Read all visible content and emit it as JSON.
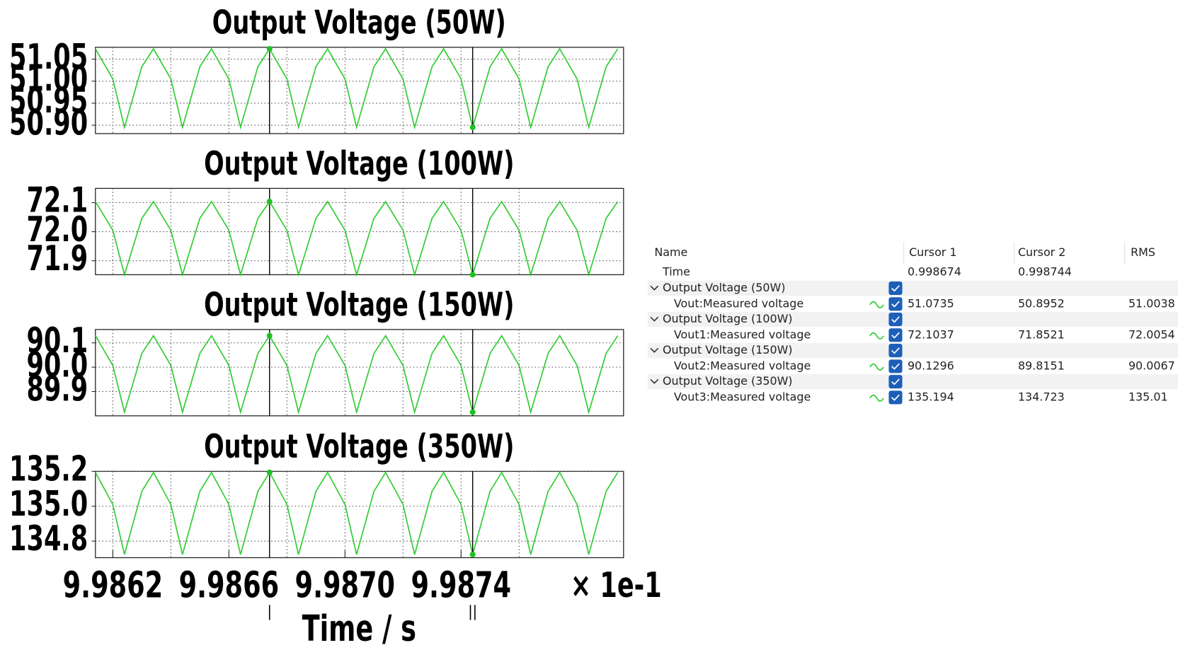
{
  "chart_data": [
    {
      "type": "line",
      "title": "Output Voltage (50W)",
      "color": "#33cc33",
      "x": [
        9.98614,
        9.9862,
        9.98624,
        9.9863,
        9.98634,
        9.9864,
        9.98644,
        9.9865,
        9.98654,
        9.9866,
        9.98664,
        9.9867,
        9.98674,
        9.9868,
        9.98684,
        9.9869,
        9.98694,
        9.987,
        9.98704,
        9.9871,
        9.98714,
        9.9872,
        9.98724,
        9.9873,
        9.98734,
        9.9874,
        9.98744,
        9.9875,
        9.98754,
        9.9876,
        9.98764,
        9.9877,
        9.98774,
        9.9878,
        9.98784,
        9.9879,
        9.98794
      ],
      "values": [
        51.0735,
        51.005,
        50.8952,
        51.033,
        51.0735,
        51.005,
        50.8952,
        51.033,
        51.0735,
        51.005,
        50.8952,
        51.033,
        51.0735,
        51.005,
        50.8952,
        51.033,
        51.0735,
        51.005,
        50.8952,
        51.033,
        51.0735,
        51.005,
        50.8952,
        51.033,
        51.0735,
        51.005,
        50.8952,
        51.033,
        51.0735,
        51.005,
        50.8952,
        51.033,
        51.0735,
        51.005,
        50.8952,
        51.033,
        51.0735
      ],
      "xlim": [
        9.98614,
        9.98796
      ],
      "xticks": [
        9.9862,
        9.9866,
        {
          "value": 9.987,
          "label": "9.9870"
        },
        9.9874
      ],
      "xminor": [
        9.9864,
        9.9868,
        9.9872,
        9.9876
      ],
      "ylim": [
        50.881,
        51.077
      ],
      "yticks": [
        {
          "value": 50.9,
          "label": "50.90"
        },
        50.95,
        {
          "value": 51,
          "label": "51.00"
        },
        51.05
      ],
      "grid": true,
      "cursors": [
        9.98674,
        9.98744
      ]
    },
    {
      "type": "line",
      "title": "Output Voltage (100W)",
      "color": "#33cc33",
      "x": [
        9.98614,
        9.9862,
        9.98624,
        9.9863,
        9.98634,
        9.9864,
        9.98644,
        9.9865,
        9.98654,
        9.9866,
        9.98664,
        9.9867,
        9.98674,
        9.9868,
        9.98684,
        9.9869,
        9.98694,
        9.987,
        9.98704,
        9.9871,
        9.98714,
        9.9872,
        9.98724,
        9.9873,
        9.98734,
        9.9874,
        9.98744,
        9.9875,
        9.98754,
        9.9876,
        9.98764,
        9.9877,
        9.98774,
        9.9878,
        9.98784,
        9.9879,
        9.98794
      ],
      "values": [
        72.1037,
        72.005,
        71.8521,
        72.046,
        72.1037,
        72.005,
        71.8521,
        72.046,
        72.1037,
        72.005,
        71.8521,
        72.046,
        72.1037,
        72.005,
        71.8521,
        72.046,
        72.1037,
        72.005,
        71.8521,
        72.046,
        72.1037,
        72.005,
        71.8521,
        72.046,
        72.1037,
        72.005,
        71.8521,
        72.046,
        72.1037,
        72.005,
        71.8521,
        72.046,
        72.1037,
        72.005,
        71.8521,
        72.046,
        72.1037
      ],
      "xlim": [
        9.98614,
        9.98796
      ],
      "xticks": [
        9.9862,
        9.9866,
        {
          "value": 9.987,
          "label": "9.9870"
        },
        9.9874
      ],
      "xminor": [
        9.9864,
        9.9868,
        9.9872,
        9.9876
      ],
      "ylim": [
        71.852,
        72.149
      ],
      "yticks": [
        71.9,
        {
          "value": 72,
          "label": "72.0"
        },
        72.1
      ],
      "grid": true,
      "cursors": [
        9.98674,
        9.98744
      ]
    },
    {
      "type": "line",
      "title": "Output Voltage (150W)",
      "color": "#33cc33",
      "x": [
        9.98614,
        9.9862,
        9.98624,
        9.9863,
        9.98634,
        9.9864,
        9.98644,
        9.9865,
        9.98654,
        9.9866,
        9.98664,
        9.9867,
        9.98674,
        9.9868,
        9.98684,
        9.9869,
        9.98694,
        9.987,
        9.98704,
        9.9871,
        9.98714,
        9.9872,
        9.98724,
        9.9873,
        9.98734,
        9.9874,
        9.98744,
        9.9875,
        9.98754,
        9.9876,
        9.98764,
        9.9877,
        9.98774,
        9.9878,
        9.98784,
        9.9879,
        9.98794
      ],
      "values": [
        90.1296,
        90.007,
        89.8151,
        90.057,
        90.1296,
        90.007,
        89.8151,
        90.057,
        90.1296,
        90.007,
        89.8151,
        90.057,
        90.1296,
        90.007,
        89.8151,
        90.057,
        90.1296,
        90.007,
        89.8151,
        90.057,
        90.1296,
        90.007,
        89.8151,
        90.057,
        90.1296,
        90.007,
        89.8151,
        90.057,
        90.1296,
        90.007,
        89.8151,
        90.057,
        90.1296,
        90.007,
        89.8151,
        90.057,
        90.1296
      ],
      "xlim": [
        9.98614,
        9.98796
      ],
      "xticks": [
        9.9862,
        9.9866,
        {
          "value": 9.987,
          "label": "9.9870"
        },
        9.9874
      ],
      "xminor": [
        9.9864,
        9.9868,
        9.9872,
        9.9876
      ],
      "ylim": [
        89.8,
        90.155
      ],
      "yticks": [
        89.9,
        {
          "value": 90,
          "label": "90.0"
        },
        90.1
      ],
      "grid": true,
      "cursors": [
        9.98674,
        9.98744
      ]
    },
    {
      "type": "line",
      "title": "Output Voltage (350W)",
      "color": "#33cc33",
      "x": [
        9.98614,
        9.9862,
        9.98624,
        9.9863,
        9.98634,
        9.9864,
        9.98644,
        9.9865,
        9.98654,
        9.9866,
        9.98664,
        9.9867,
        9.98674,
        9.9868,
        9.98684,
        9.9869,
        9.98694,
        9.987,
        9.98704,
        9.9871,
        9.98714,
        9.9872,
        9.98724,
        9.9873,
        9.98734,
        9.9874,
        9.98744,
        9.9875,
        9.98754,
        9.9876,
        9.98764,
        9.9877,
        9.98774,
        9.9878,
        9.98784,
        9.9879,
        9.98794
      ],
      "values": [
        135.194,
        135.01,
        134.723,
        135.086,
        135.194,
        135.01,
        134.723,
        135.086,
        135.194,
        135.01,
        134.723,
        135.086,
        135.194,
        135.01,
        134.723,
        135.086,
        135.194,
        135.01,
        134.723,
        135.086,
        135.194,
        135.01,
        134.723,
        135.086,
        135.194,
        135.01,
        134.723,
        135.086,
        135.194,
        135.01,
        134.723,
        135.086,
        135.194,
        135.01,
        134.723,
        135.086,
        135.194
      ],
      "xlim": [
        9.98614,
        9.98796
      ],
      "xticks": [
        9.9862,
        9.9866,
        {
          "value": 9.987,
          "label": "9.9870"
        },
        9.9874
      ],
      "xminor": [
        9.9864,
        9.9868,
        9.9872,
        9.9876
      ],
      "ylim": [
        134.705,
        135.2
      ],
      "yticks": [
        134.8,
        {
          "value": 135,
          "label": "135.0"
        },
        135.2
      ],
      "grid": true,
      "cursors": [
        9.98674,
        9.98744
      ],
      "xlabel": "Time / s",
      "xscale_label": "× 1e-1"
    }
  ],
  "cursor_table": {
    "columns": [
      "Name",
      "Cursor 1",
      "Cursor 2",
      "RMS"
    ],
    "time": {
      "name": "Time",
      "cursor1": "0.998674",
      "cursor2": "0.998744"
    },
    "groups": [
      {
        "name": "Output Voltage (50W)",
        "signal": {
          "name": "Vout:Measured voltage",
          "cursor1": "51.0735",
          "cursor2": "50.8952",
          "rms": "51.0038"
        }
      },
      {
        "name": "Output Voltage (100W)",
        "signal": {
          "name": "Vout1:Measured voltage",
          "cursor1": "72.1037",
          "cursor2": "71.8521",
          "rms": "72.0054"
        }
      },
      {
        "name": "Output Voltage (150W)",
        "signal": {
          "name": "Vout2:Measured voltage",
          "cursor1": "90.1296",
          "cursor2": "89.8151",
          "rms": "90.0067"
        }
      },
      {
        "name": "Output Voltage (350W)",
        "signal": {
          "name": "Vout3:Measured voltage",
          "cursor1": "135.194",
          "cursor2": "134.723",
          "rms": "135.01"
        }
      }
    ]
  }
}
